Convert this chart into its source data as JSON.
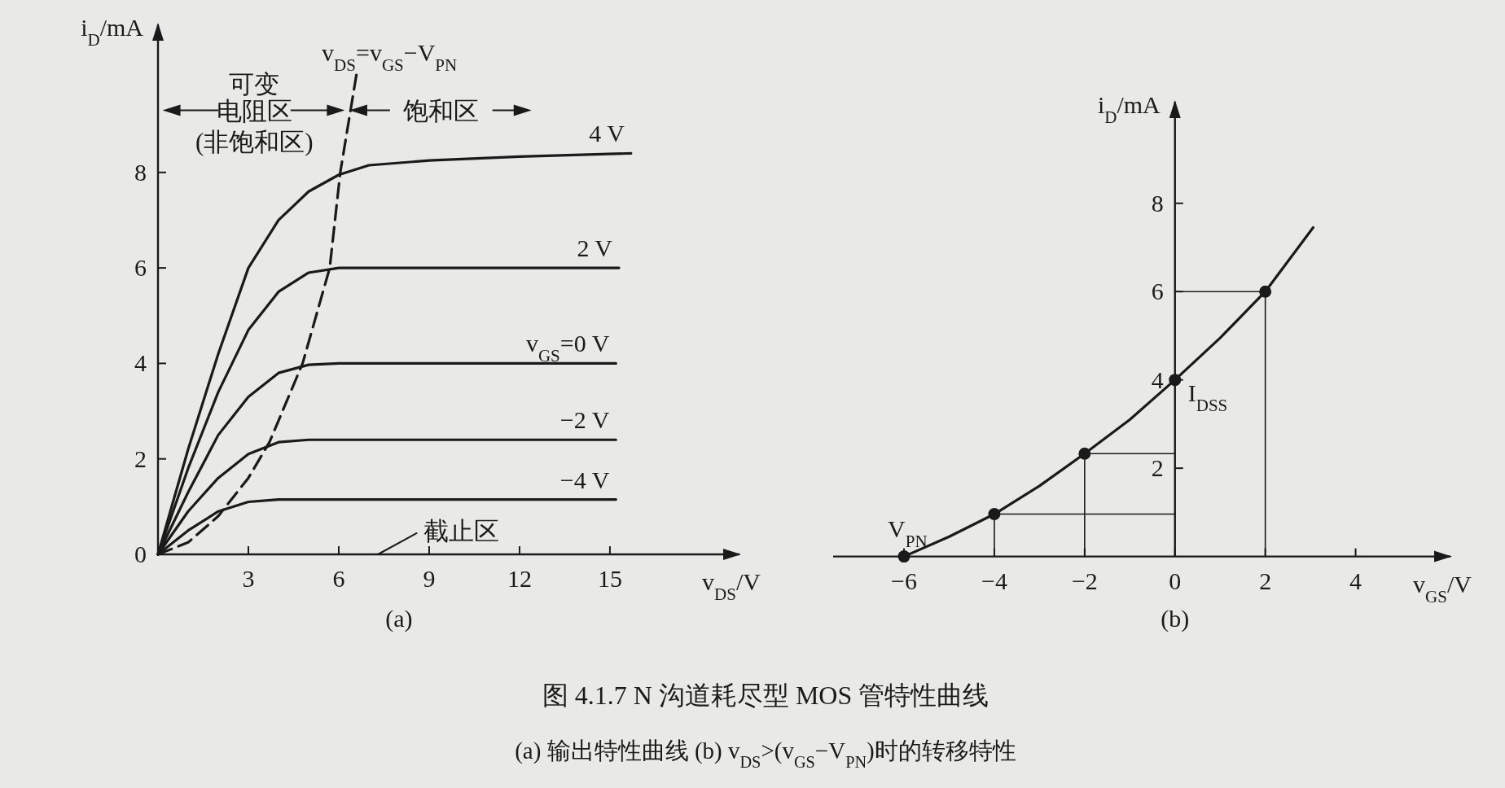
{
  "chart_data": [
    {
      "type": "line",
      "title": "(a)",
      "xlabel": "v$_{DS}$/V",
      "ylabel": "i$_{D}$/mA",
      "xlim": [
        0,
        19.3
      ],
      "ylim": [
        0,
        11.1
      ],
      "xticks": [
        3,
        6,
        9,
        12,
        15
      ],
      "yticks": [
        0,
        2,
        4,
        6,
        8
      ],
      "grid": false,
      "line_style": "solid",
      "series": [
        {
          "name": "4 V",
          "color": "#1a1a1a",
          "x": [
            0,
            1,
            2,
            3,
            4,
            5,
            6,
            7,
            9,
            12,
            15.7
          ],
          "values": [
            0,
            2.2,
            4.2,
            6.0,
            7.0,
            7.6,
            7.95,
            8.15,
            8.25,
            8.33,
            8.4
          ]
        },
        {
          "name": "2 V",
          "color": "#1a1a1a",
          "x": [
            0,
            1,
            2,
            3,
            4,
            5,
            6,
            15.3
          ],
          "values": [
            0,
            1.8,
            3.4,
            4.7,
            5.5,
            5.9,
            6.0,
            6.0
          ]
        },
        {
          "name": "v$_{GS}$=0 V",
          "color": "#1a1a1a",
          "x": [
            0,
            1,
            2,
            3,
            4,
            5,
            6,
            15.2
          ],
          "values": [
            0,
            1.3,
            2.5,
            3.3,
            3.8,
            3.97,
            4.0,
            4.0
          ]
        },
        {
          "name": "−2 V",
          "color": "#1a1a1a",
          "x": [
            0,
            1,
            2,
            3,
            4,
            5,
            15.2
          ],
          "values": [
            0,
            0.9,
            1.6,
            2.1,
            2.35,
            2.4,
            2.4
          ]
        },
        {
          "name": "−4 V",
          "color": "#1a1a1a",
          "x": [
            0,
            1,
            2,
            3,
            4,
            15.2
          ],
          "values": [
            0,
            0.5,
            0.9,
            1.1,
            1.15,
            1.15
          ]
        },
        {
          "name": "v$_{DS}$=v$_{GS}$−V$_{PN}$",
          "color": "#1a1a1a",
          "line_style": "dashed",
          "x": [
            0,
            1,
            2,
            3,
            3.7,
            4.8,
            5.7,
            6.05,
            6.6
          ],
          "values": [
            0,
            0.25,
            0.8,
            1.6,
            2.35,
            4.0,
            6.0,
            8.0,
            10.1
          ]
        }
      ],
      "annotations": [
        "可变",
        "电阻区",
        "(非饱和区)",
        "饱和区",
        "截止区",
        "图 4.1.7  N 沟道耗尽型 MOS 管特性曲线",
        "(a) 输出特性曲线   (b) v$_{DS}$>(v$_{GS}$−V$_{PN}$)时的转移特性"
      ]
    },
    {
      "type": "line",
      "title": "(b)",
      "xlabel": "v$_{GS}$/V",
      "ylabel": "i$_{D}$/mA",
      "xlim": [
        -7.57,
        6.1
      ],
      "ylim": [
        0,
        10.3
      ],
      "xticks": [
        {
          "value": -6,
          "label": "−6"
        },
        {
          "value": -4,
          "label": "−4"
        },
        {
          "value": -2,
          "label": "−2"
        },
        0,
        2,
        {
          "value": 4,
          "label": "4"
        }
      ],
      "yticks": [
        2,
        4,
        6,
        8
      ],
      "grid": false,
      "line_style": "solid",
      "series": [
        {
          "color": "#1a1a1a",
          "x": [
            -6,
            -5,
            -4,
            -3,
            -2,
            -1,
            0,
            1,
            2,
            3.06
          ],
          "values": [
            0,
            0.45,
            0.96,
            1.6,
            2.33,
            3.1,
            4.0,
            4.95,
            6.0,
            7.45
          ]
        },
        {
          "color": "#1a1a1a",
          "x": [
            -4,
            -4,
            0
          ],
          "values": [
            0,
            0.96,
            0.96
          ]
        },
        {
          "color": "#1a1a1a",
          "x": [
            -2,
            -2,
            0
          ],
          "values": [
            0,
            2.33,
            2.33
          ]
        },
        {
          "color": "#1a1a1a",
          "x": [
            2,
            2,
            0
          ],
          "values": [
            0,
            6.0,
            6.0
          ]
        },
        {
          "type": "scatter",
          "marker": "circle",
          "color": "#1a1a1a",
          "x": [
            -6,
            -4,
            -2,
            0,
            2
          ],
          "values": [
            0,
            0.96,
            2.33,
            4.0,
            6.0
          ]
        }
      ],
      "annotations": [
        {
          "text": "I$_{DSS}$",
          "x": 0,
          "y": 4.0
        },
        {
          "text": "V$_{PN}$",
          "x": -6,
          "y": 0
        }
      ]
    }
  ]
}
